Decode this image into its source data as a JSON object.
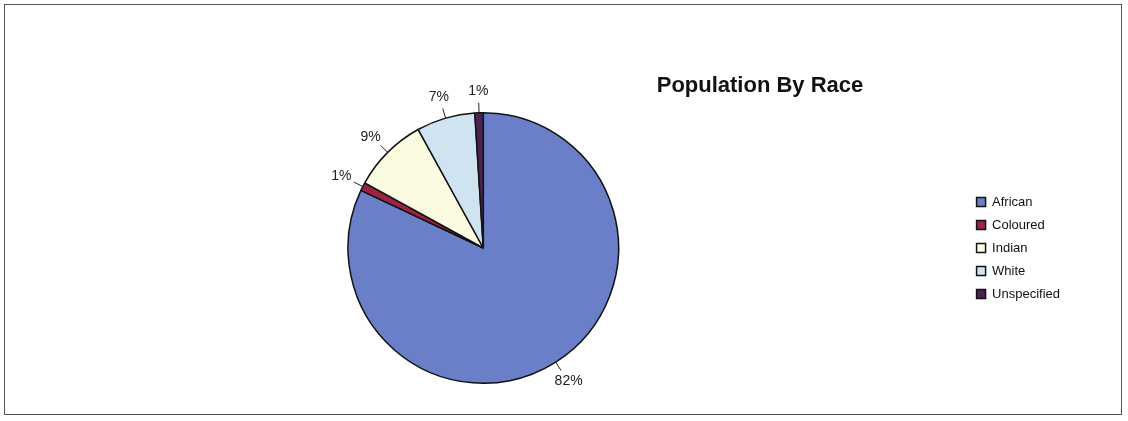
{
  "chart_data": {
    "type": "pie",
    "title": "Population By Race",
    "categories": [
      "African",
      "Coloured",
      "Indian",
      "White",
      "Unspecified"
    ],
    "values": [
      82,
      1,
      9,
      7,
      1
    ],
    "value_labels": [
      "82%",
      "1%",
      "9%",
      "7%",
      "1%"
    ],
    "colors": [
      "#6b7fc9",
      "#9a2442",
      "#fbfbe2",
      "#cfe3f1",
      "#4a2451"
    ],
    "legend": "right"
  }
}
